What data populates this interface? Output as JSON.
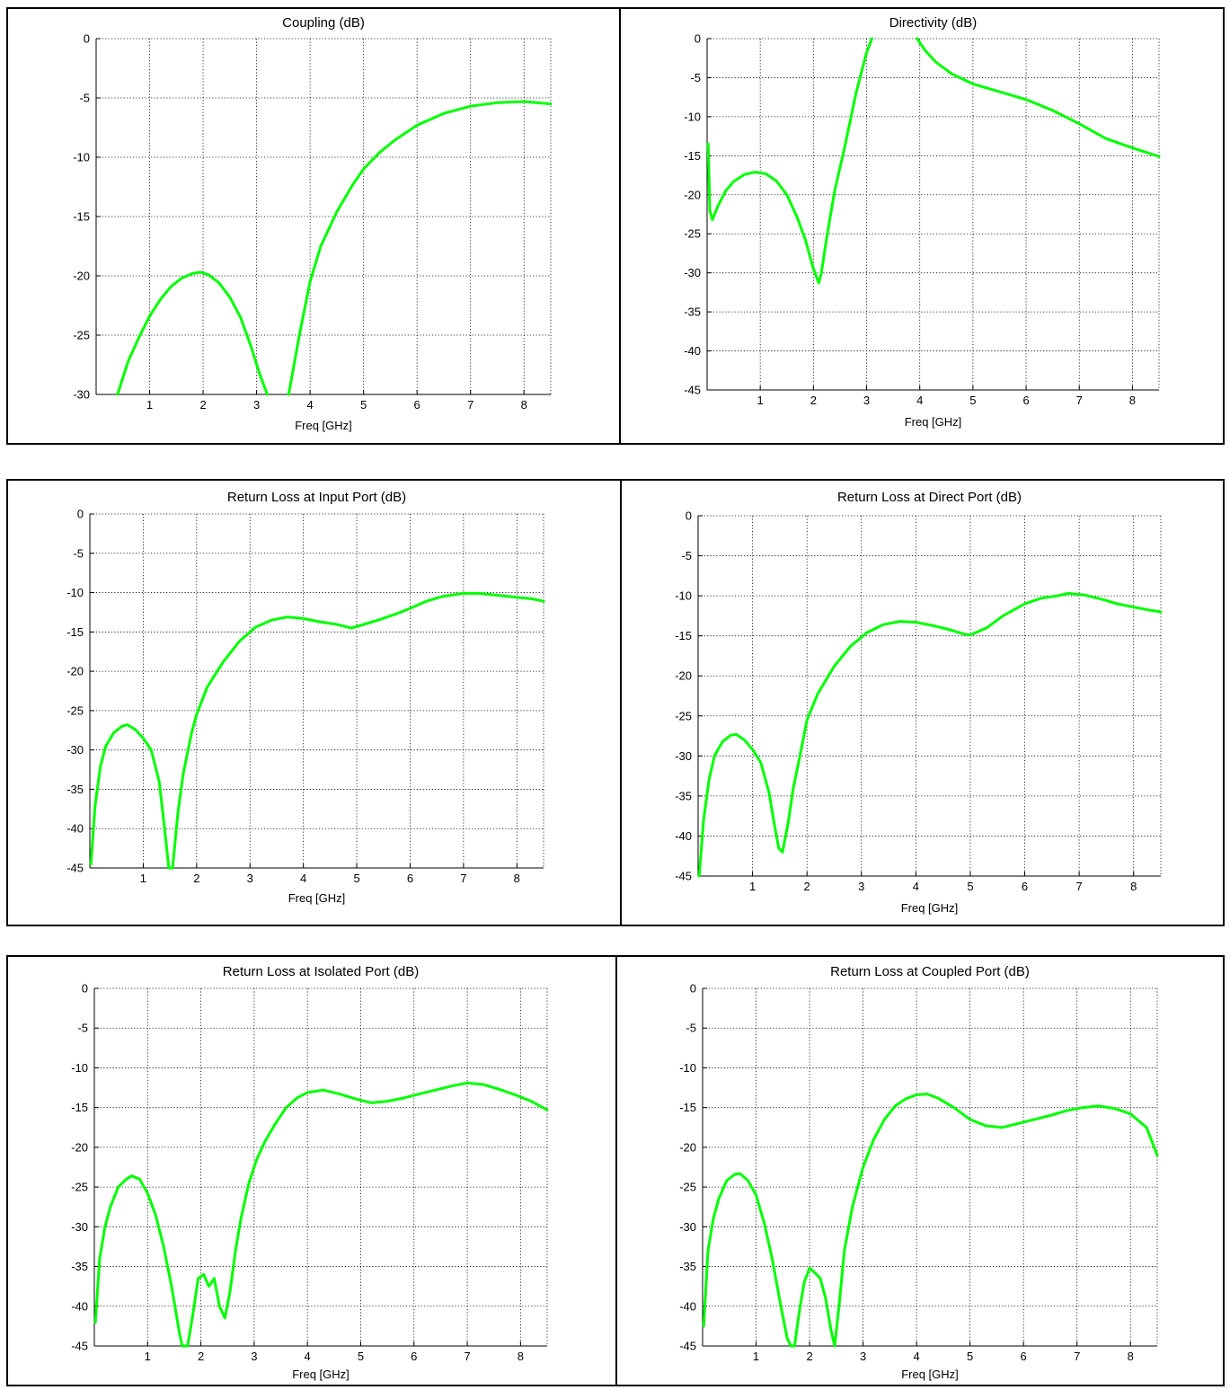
{
  "figure": {
    "line_color": "#00ff00",
    "grid_color": "#000000",
    "frame_color": "#000000"
  },
  "chart_data": [
    {
      "type": "line",
      "title": "Coupling (dB)",
      "xlabel": "Freq [GHz]",
      "ylabel": "",
      "xlim": [
        0,
        8.5
      ],
      "ylim": [
        -30,
        0
      ],
      "xticks": [
        1,
        2,
        3,
        4,
        5,
        6,
        7,
        8
      ],
      "yticks": [
        0,
        -5,
        -10,
        -15,
        -20,
        -25,
        -30
      ],
      "grid": true,
      "legend": "none",
      "series": [
        {
          "x": [
            0.4,
            0.6,
            0.8,
            1.0,
            1.2,
            1.4,
            1.6,
            1.8,
            1.95,
            2.1,
            2.3,
            2.5,
            2.7,
            2.9,
            3.05,
            3.2
          ],
          "y": [
            -30,
            -27.2,
            -25.2,
            -23.4,
            -22.0,
            -20.9,
            -20.2,
            -19.8,
            -19.7,
            -19.9,
            -20.6,
            -21.8,
            -23.5,
            -26,
            -28.2,
            -30
          ]
        },
        {
          "x": [
            3.6,
            3.8,
            4.0,
            4.2,
            4.5,
            4.8,
            5.0,
            5.3,
            5.6,
            6.0,
            6.5,
            7.0,
            7.5,
            8.0,
            8.5
          ],
          "y": [
            -30,
            -25.0,
            -20.5,
            -17.5,
            -14.6,
            -12.3,
            -11.0,
            -9.6,
            -8.5,
            -7.3,
            -6.3,
            -5.7,
            -5.4,
            -5.3,
            -5.5
          ]
        }
      ]
    },
    {
      "type": "line",
      "title": "Directivity (dB)",
      "xlabel": "Freq [GHz]",
      "ylabel": "",
      "xlim": [
        0,
        8.5
      ],
      "ylim": [
        -45,
        0
      ],
      "xticks": [
        1,
        2,
        3,
        4,
        5,
        6,
        7,
        8
      ],
      "yticks": [
        0,
        -5,
        -10,
        -15,
        -20,
        -25,
        -30,
        -35,
        -40,
        -45
      ],
      "grid": true,
      "legend": "none",
      "series": [
        {
          "x": [
            0.02,
            0.05,
            0.1,
            0.2,
            0.35,
            0.5,
            0.7,
            0.9,
            1.1,
            1.3,
            1.5,
            1.7,
            1.85,
            2.0,
            2.1,
            2.15,
            2.25,
            2.4,
            2.6,
            2.8,
            3.0,
            3.1
          ],
          "y": [
            -13.5,
            -22,
            -23.2,
            -21.5,
            -19.5,
            -18.3,
            -17.4,
            -17.1,
            -17.3,
            -18.2,
            -20.0,
            -23.0,
            -25.8,
            -29.5,
            -31.3,
            -30.0,
            -25.5,
            -19.5,
            -13.5,
            -7.0,
            -1.8,
            0
          ]
        },
        {
          "x": [
            3.95,
            4.1,
            4.3,
            4.6,
            5.0,
            5.5,
            6.0,
            6.5,
            7.0,
            7.5,
            8.0,
            8.5
          ],
          "y": [
            0,
            -1.5,
            -3.0,
            -4.5,
            -5.8,
            -6.8,
            -7.8,
            -9.2,
            -10.9,
            -12.8,
            -14.0,
            -15.1
          ]
        }
      ]
    },
    {
      "type": "line",
      "title": "Return Loss at Input Port (dB)",
      "xlabel": "Freq [GHz]",
      "ylabel": "",
      "xlim": [
        0,
        8.5
      ],
      "ylim": [
        -45,
        0
      ],
      "xticks": [
        1,
        2,
        3,
        4,
        5,
        6,
        7,
        8
      ],
      "yticks": [
        0,
        -5,
        -10,
        -15,
        -20,
        -25,
        -30,
        -35,
        -40,
        -45
      ],
      "grid": true,
      "legend": "none",
      "series": [
        {
          "x": [
            0.02,
            0.1,
            0.2,
            0.3,
            0.45,
            0.6,
            0.7,
            0.85,
            1.0,
            1.15,
            1.3,
            1.4,
            1.48,
            1.55,
            1.65,
            1.75,
            1.9,
            2.0,
            2.2,
            2.5,
            2.8,
            3.1,
            3.4,
            3.7,
            4.0,
            4.3,
            4.6,
            4.9,
            5.1,
            5.4,
            5.7,
            6.0,
            6.3,
            6.6,
            7.0,
            7.3,
            7.6,
            8.0,
            8.3,
            8.5
          ],
          "y": [
            -44.5,
            -37,
            -32,
            -29.5,
            -27.8,
            -27.0,
            -26.8,
            -27.4,
            -28.5,
            -30.0,
            -34.0,
            -40.0,
            -45,
            -45,
            -38,
            -33,
            -28,
            -25.5,
            -22,
            -18.8,
            -16.2,
            -14.4,
            -13.5,
            -13.1,
            -13.3,
            -13.7,
            -14.0,
            -14.5,
            -14.1,
            -13.5,
            -12.8,
            -12.0,
            -11.1,
            -10.5,
            -10.1,
            -10.1,
            -10.3,
            -10.6,
            -10.8,
            -11.1
          ]
        }
      ]
    },
    {
      "type": "line",
      "title": "Return Loss at Direct Port (dB)",
      "xlabel": "Freq [GHz]",
      "ylabel": "",
      "xlim": [
        0,
        8.5
      ],
      "ylim": [
        -45,
        0
      ],
      "xticks": [
        1,
        2,
        3,
        4,
        5,
        6,
        7,
        8
      ],
      "yticks": [
        0,
        -5,
        -10,
        -15,
        -20,
        -25,
        -30,
        -35,
        -40,
        -45
      ],
      "grid": true,
      "legend": "none",
      "series": [
        {
          "x": [
            0.02,
            0.1,
            0.2,
            0.3,
            0.45,
            0.6,
            0.7,
            0.85,
            1.0,
            1.15,
            1.3,
            1.4,
            1.48,
            1.55,
            1.65,
            1.75,
            1.9,
            2.0,
            2.2,
            2.5,
            2.8,
            3.1,
            3.4,
            3.7,
            4.0,
            4.3,
            4.6,
            4.9,
            5.0,
            5.3,
            5.6,
            6.0,
            6.3,
            6.6,
            6.8,
            7.1,
            7.4,
            7.7,
            8.0,
            8.3,
            8.5
          ],
          "y": [
            -45,
            -38,
            -33,
            -30,
            -28.2,
            -27.4,
            -27.3,
            -28,
            -29.2,
            -30.8,
            -34.5,
            -38.5,
            -41.5,
            -42,
            -38.5,
            -34,
            -29,
            -25.5,
            -22.2,
            -18.8,
            -16.3,
            -14.6,
            -13.6,
            -13.2,
            -13.3,
            -13.7,
            -14.2,
            -14.8,
            -14.9,
            -14.0,
            -12.5,
            -11.0,
            -10.3,
            -10.0,
            -9.7,
            -9.9,
            -10.4,
            -11.0,
            -11.4,
            -11.8,
            -12.0
          ]
        }
      ]
    },
    {
      "type": "line",
      "title": "Return Loss at Isolated Port (dB)",
      "xlabel": "Freq [GHz]",
      "ylabel": "",
      "xlim": [
        0,
        8.5
      ],
      "ylim": [
        -45,
        0
      ],
      "xticks": [
        1,
        2,
        3,
        4,
        5,
        6,
        7,
        8
      ],
      "yticks": [
        0,
        -5,
        -10,
        -15,
        -20,
        -25,
        -30,
        -35,
        -40,
        -45
      ],
      "grid": true,
      "legend": "none",
      "series": [
        {
          "x": [
            0.02,
            0.1,
            0.2,
            0.3,
            0.45,
            0.6,
            0.7,
            0.85,
            1.0,
            1.15,
            1.3,
            1.45,
            1.6,
            1.65,
            1.75,
            1.85,
            1.95,
            2.05,
            2.15,
            2.25,
            2.35,
            2.45,
            2.55,
            2.65,
            2.75,
            2.9,
            3.05,
            3.2,
            3.4,
            3.6,
            3.8,
            4.0,
            4.3,
            4.6,
            4.9,
            5.2,
            5.5,
            5.8,
            6.1,
            6.4,
            6.7,
            7.0,
            7.3,
            7.6,
            7.9,
            8.2,
            8.5
          ],
          "y": [
            -42,
            -34,
            -30,
            -27.5,
            -25.0,
            -24.0,
            -23.6,
            -24.0,
            -25.8,
            -28.5,
            -32.5,
            -37.5,
            -43.5,
            -45,
            -45,
            -41,
            -36.5,
            -36,
            -37.5,
            -36.5,
            -40,
            -41.5,
            -38,
            -33,
            -29,
            -24.5,
            -21.5,
            -19.3,
            -17.0,
            -15.0,
            -13.8,
            -13.1,
            -12.8,
            -13.3,
            -13.9,
            -14.4,
            -14.2,
            -13.8,
            -13.3,
            -12.8,
            -12.3,
            -11.9,
            -12.1,
            -12.7,
            -13.4,
            -14.2,
            -15.3
          ]
        }
      ]
    },
    {
      "type": "line",
      "title": "Return Loss at Coupled Port (dB)",
      "xlabel": "Freq [GHz]",
      "ylabel": "",
      "xlim": [
        0,
        8.5
      ],
      "ylim": [
        -45,
        0
      ],
      "xticks": [
        1,
        2,
        3,
        4,
        5,
        6,
        7,
        8
      ],
      "yticks": [
        0,
        -5,
        -10,
        -15,
        -20,
        -25,
        -30,
        -35,
        -40,
        -45
      ],
      "grid": true,
      "legend": "none",
      "series": [
        {
          "x": [
            0.02,
            0.1,
            0.2,
            0.3,
            0.45,
            0.6,
            0.7,
            0.85,
            1.0,
            1.15,
            1.3,
            1.45,
            1.58,
            1.65,
            1.72,
            1.8,
            1.9,
            2.0,
            2.1,
            2.2,
            2.3,
            2.4,
            2.47,
            2.55,
            2.65,
            2.8,
            3.0,
            3.2,
            3.4,
            3.6,
            3.8,
            4.0,
            4.2,
            4.4,
            4.7,
            5.0,
            5.3,
            5.6,
            5.9,
            6.2,
            6.5,
            6.8,
            7.1,
            7.4,
            7.7,
            8.0,
            8.3,
            8.5
          ],
          "y": [
            -42.5,
            -33,
            -29,
            -26.5,
            -24.2,
            -23.4,
            -23.3,
            -24.2,
            -26.0,
            -29.5,
            -34.0,
            -39.5,
            -44.0,
            -45,
            -45,
            -41,
            -37,
            -35.2,
            -35.8,
            -36.5,
            -39,
            -43,
            -45,
            -40,
            -33,
            -27.5,
            -22.5,
            -19.0,
            -16.5,
            -14.8,
            -13.9,
            -13.4,
            -13.3,
            -13.8,
            -15.0,
            -16.5,
            -17.3,
            -17.5,
            -17.0,
            -16.5,
            -16.0,
            -15.4,
            -15.0,
            -14.8,
            -15.1,
            -15.8,
            -17.5,
            -21.0
          ]
        }
      ]
    }
  ]
}
